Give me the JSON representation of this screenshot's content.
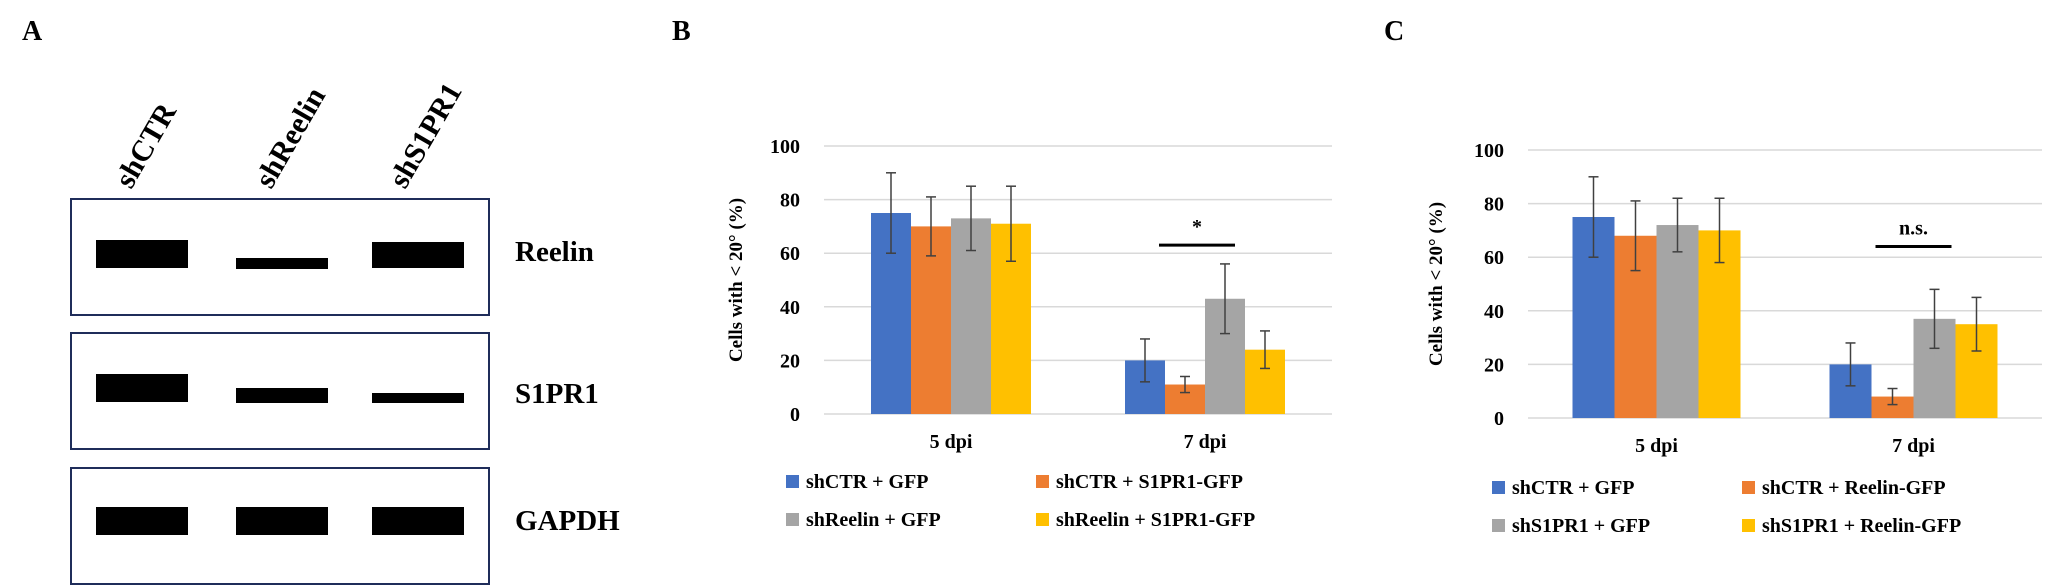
{
  "panel_a": {
    "letter": "A",
    "lanes": [
      "shCTR",
      "shReelin",
      "shS1PR1"
    ],
    "blots": [
      {
        "label": "Reelin",
        "band_intensity": [
          1.0,
          0.4,
          0.9
        ]
      },
      {
        "label": "S1PR1",
        "band_intensity": [
          1.0,
          0.55,
          0.35
        ]
      },
      {
        "label": "GAPDH",
        "band_intensity": [
          1.0,
          1.0,
          1.0
        ]
      }
    ]
  },
  "chart_data": [
    {
      "panel": "B",
      "type": "bar",
      "categories": [
        "5 dpi",
        "7 dpi"
      ],
      "ylabel": "Cells with < 20° (%)",
      "ylim": [
        0,
        100
      ],
      "yticks": [
        0,
        20,
        40,
        60,
        80,
        100
      ],
      "grid": true,
      "legend_position": "bottom",
      "series": [
        {
          "name": "shCTR + GFP",
          "color": "#4472c4",
          "values": [
            75,
            20
          ],
          "errors": [
            15,
            8
          ]
        },
        {
          "name": "shCTR + S1PR1-GFP",
          "color": "#ed7d31",
          "values": [
            70,
            11
          ],
          "errors": [
            11,
            3
          ]
        },
        {
          "name": "shReelin + GFP",
          "color": "#a5a5a5",
          "values": [
            73,
            43
          ],
          "errors": [
            12,
            13
          ]
        },
        {
          "name": "shReelin + S1PR1-GFP",
          "color": "#ffc000",
          "values": [
            71,
            24
          ],
          "errors": [
            14,
            7
          ]
        }
      ],
      "annotation": {
        "text": "*",
        "category_index": 1
      }
    },
    {
      "panel": "C",
      "type": "bar",
      "categories": [
        "5 dpi",
        "7 dpi"
      ],
      "ylabel": "Cells with < 20° (%)",
      "ylim": [
        0,
        100
      ],
      "yticks": [
        0,
        20,
        40,
        60,
        80,
        100
      ],
      "grid": true,
      "legend_position": "bottom",
      "series": [
        {
          "name": "shCTR + GFP",
          "color": "#4472c4",
          "values": [
            75,
            20
          ],
          "errors": [
            15,
            8
          ]
        },
        {
          "name": "shCTR + Reelin-GFP",
          "color": "#ed7d31",
          "values": [
            68,
            8
          ],
          "errors": [
            13,
            3
          ]
        },
        {
          "name": "shS1PR1 + GFP",
          "color": "#a5a5a5",
          "values": [
            72,
            37
          ],
          "errors": [
            10,
            11
          ]
        },
        {
          "name": "shS1PR1 + Reelin-GFP",
          "color": "#ffc000",
          "values": [
            70,
            35
          ],
          "errors": [
            12,
            10
          ]
        }
      ],
      "annotation": {
        "text": "n.s.",
        "category_index": 1
      }
    }
  ]
}
